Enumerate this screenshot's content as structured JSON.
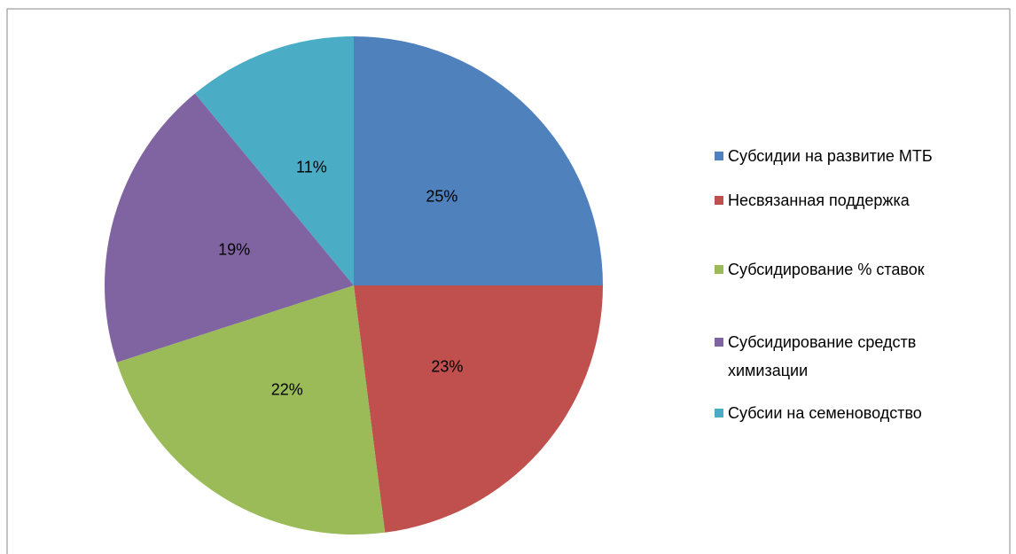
{
  "chart_data": {
    "type": "pie",
    "categories": [
      "Субсидии на развитие МТБ",
      "Несвязанная поддержка",
      "Субсидирование % ставок",
      "Субсидирование средств химизации",
      "Субсии на семеноводство"
    ],
    "values": [
      25,
      23,
      22,
      19,
      11
    ],
    "value_labels": [
      "25%",
      "23%",
      "22%",
      "19%",
      "11%"
    ],
    "colors": [
      "#4f81bd",
      "#c0504d",
      "#9bbb59",
      "#8064a2",
      "#4bacc6"
    ],
    "legend": "right"
  }
}
